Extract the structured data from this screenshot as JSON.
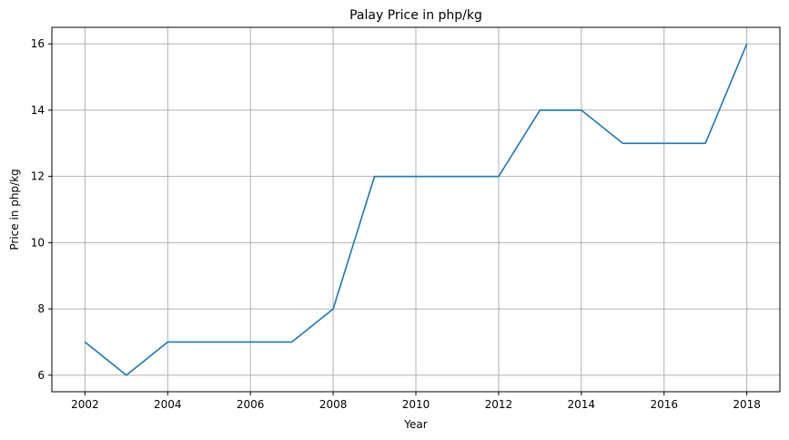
{
  "chart_data": {
    "type": "line",
    "title": "Palay Price in php/kg",
    "xlabel": "Year",
    "ylabel": "Price in php/kg",
    "x": [
      2002,
      2003,
      2004,
      2005,
      2006,
      2007,
      2008,
      2009,
      2010,
      2011,
      2012,
      2013,
      2014,
      2015,
      2016,
      2017,
      2018
    ],
    "series": [
      {
        "values": [
          7,
          6,
          7,
          7,
          7,
          7,
          8,
          12,
          12,
          12,
          12,
          14,
          14,
          13,
          13,
          13,
          16
        ]
      }
    ],
    "xticks": [
      2002,
      2004,
      2006,
      2008,
      2010,
      2012,
      2014,
      2016,
      2018
    ],
    "yticks": [
      6,
      8,
      10,
      12,
      14,
      16
    ],
    "xlim": [
      2001.2,
      2018.8
    ],
    "ylim": [
      5.5,
      16.5
    ],
    "grid": true,
    "line_color": "#1f77b4"
  }
}
